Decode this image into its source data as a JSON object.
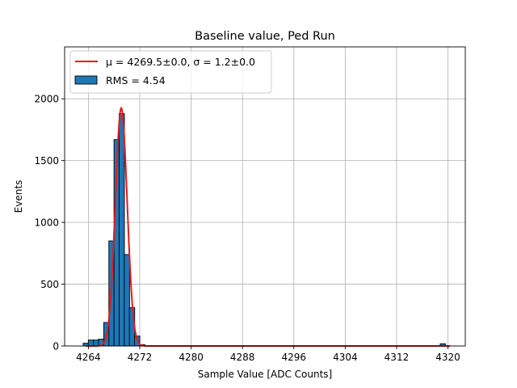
{
  "chart_data": {
    "type": "bar",
    "title": "Baseline value, Ped Run",
    "xlabel": "Sample Value [ADC Counts]",
    "ylabel": "Events",
    "xlim": [
      4260.3,
      4322.7
    ],
    "ylim": [
      0,
      2420
    ],
    "x_ticks": [
      4264,
      4272,
      4280,
      4288,
      4296,
      4304,
      4312,
      4320
    ],
    "y_ticks": [
      0,
      500,
      1000,
      1500,
      2000
    ],
    "grid": true,
    "legend_position": "upper-left",
    "histogram": {
      "name": "RMS = 4.54",
      "color": "#1f77b4",
      "edgecolor": "#000000",
      "bin_width": 0.82,
      "bins": [
        {
          "x": 4263.6,
          "count": 22
        },
        {
          "x": 4264.4,
          "count": 48
        },
        {
          "x": 4265.2,
          "count": 48
        },
        {
          "x": 4266.0,
          "count": 55
        },
        {
          "x": 4266.8,
          "count": 190
        },
        {
          "x": 4267.6,
          "count": 850
        },
        {
          "x": 4268.4,
          "count": 1670
        },
        {
          "x": 4269.2,
          "count": 1880
        },
        {
          "x": 4270.0,
          "count": 740
        },
        {
          "x": 4270.8,
          "count": 310
        },
        {
          "x": 4271.6,
          "count": 80
        },
        {
          "x": 4272.4,
          "count": 10
        },
        {
          "x": 4319.2,
          "count": 18
        }
      ]
    },
    "fit": {
      "name": "μ = 4269.5±0.0, σ = 1.2±0.0",
      "color": "#e41a1c",
      "mu_display": 4269.5,
      "sigma_display": 1.2,
      "peak": 1925,
      "curve_x_range": [
        4263.6,
        4320.3
      ]
    },
    "legend": {
      "fit_label": "μ = 4269.5±0.0, σ = 1.2±0.0",
      "hist_label": "RMS = 4.54"
    }
  }
}
